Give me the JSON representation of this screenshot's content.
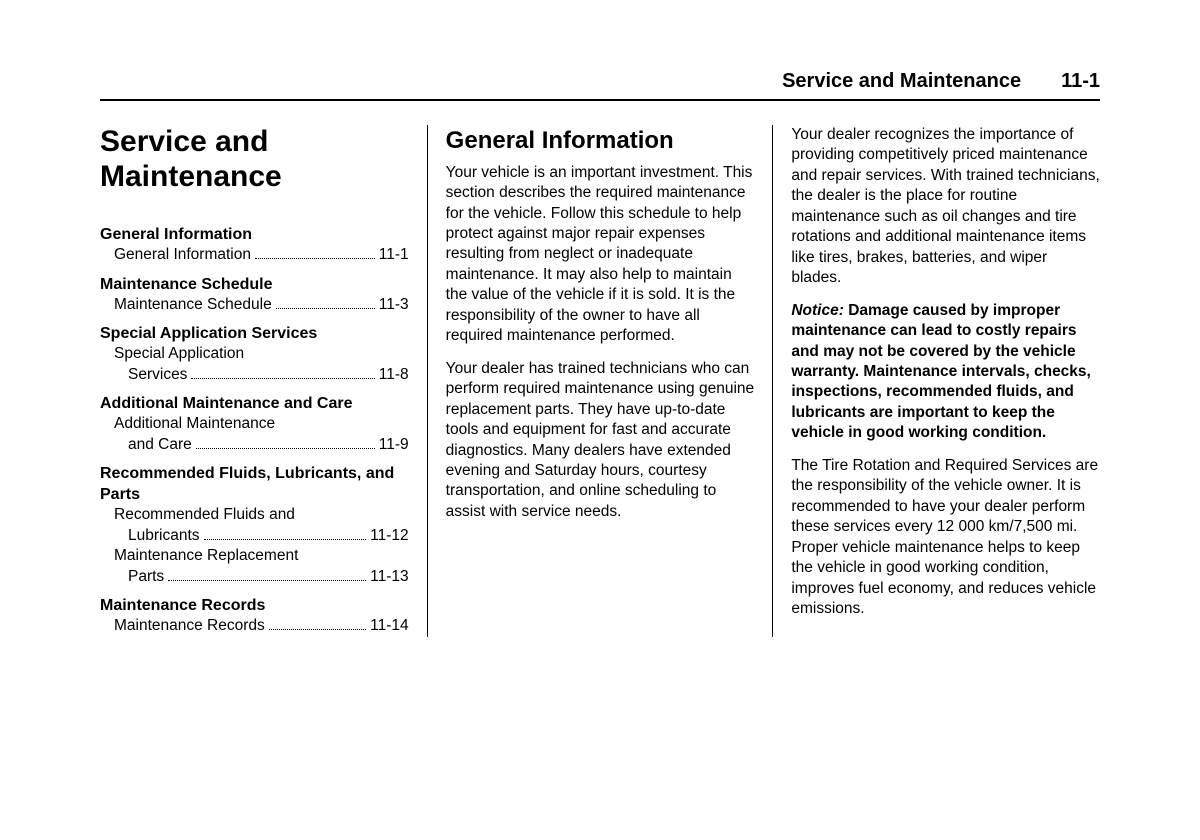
{
  "header": {
    "title": "Service and Maintenance",
    "page": "11-1"
  },
  "col1": {
    "chapterTitle": "Service and Maintenance",
    "toc": [
      {
        "head": "General Information",
        "items": [
          {
            "label": "General Information",
            "page": "11-1"
          }
        ]
      },
      {
        "head": "Maintenance Schedule",
        "items": [
          {
            "label": "Maintenance Schedule",
            "page": "11-3"
          }
        ]
      },
      {
        "head": "Special Application Services",
        "items": [
          {
            "label": "Special Application Services",
            "page": "11-8"
          }
        ]
      },
      {
        "head": "Additional Maintenance and Care",
        "items": [
          {
            "label": "Additional Maintenance and Care",
            "page": "11-9"
          }
        ]
      },
      {
        "head": "Recommended Fluids, Lubricants, and Parts",
        "items": [
          {
            "label": "Recommended Fluids and Lubricants",
            "page": "11-12"
          },
          {
            "label": "Maintenance Replacement Parts",
            "page": "11-13"
          }
        ]
      },
      {
        "head": "Maintenance Records",
        "items": [
          {
            "label": "Maintenance Records",
            "page": "11-14"
          }
        ]
      }
    ]
  },
  "col2": {
    "heading": "General Information",
    "p1": "Your vehicle is an important investment. This section describes the required maintenance for the vehicle. Follow this schedule to help protect against major repair expenses resulting from neglect or inadequate maintenance. It may also help to maintain the value of the vehicle if it is sold. It is the responsibility of the owner to have all required maintenance performed.",
    "p2": "Your dealer has trained technicians who can perform required maintenance using genuine replacement parts. They have up-to-date tools and equipment for fast and accurate diagnostics. Many dealers have extended evening and Saturday hours, courtesy transportation, and online scheduling to assist with service needs."
  },
  "col3": {
    "p1": "Your dealer recognizes the importance of providing competitively priced maintenance and repair services. With trained technicians, the dealer is the place for routine maintenance such as oil changes and tire rotations and additional maintenance items like tires, brakes, batteries, and wiper blades.",
    "noticeLabel": "Notice:",
    "noticeText": " Damage caused by improper maintenance can lead to costly repairs and may not be covered by the vehicle warranty. Maintenance intervals, checks, inspections, recommended fluids, and lubricants are important to keep the vehicle in good working condition.",
    "p3": "The Tire Rotation and Required Services are the responsibility of the vehicle owner. It is recommended to have your dealer perform these services every 12 000 km/7,500 mi. Proper vehicle maintenance helps to keep the vehicle in good working condition, improves fuel economy, and reduces vehicle emissions."
  }
}
